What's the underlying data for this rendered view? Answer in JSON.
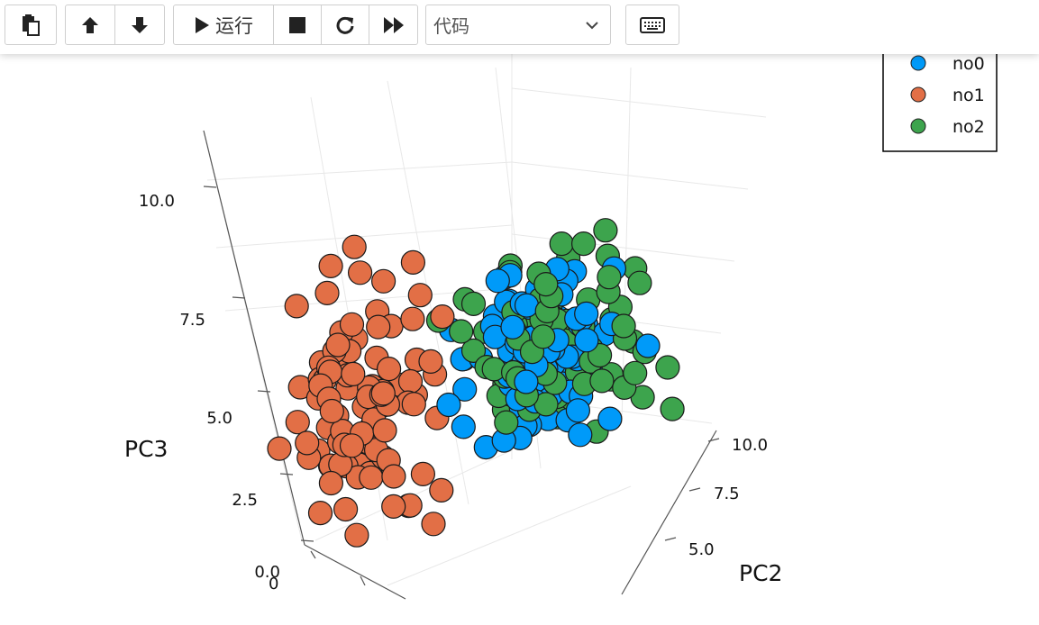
{
  "toolbar": {
    "run_label": "运行",
    "cell_type": "代码"
  },
  "chart_data": {
    "type": "scatter",
    "projection": "3d",
    "zlabel": "PC3",
    "ylabel": "PC2",
    "z_ticks": [
      "0.0",
      "2.5",
      "5.0",
      "7.5",
      "10.0"
    ],
    "y_ticks": [
      "5.0",
      "7.5",
      "10.0"
    ],
    "x_ticks": [
      "0"
    ],
    "legend_position": "top-right",
    "grid": true,
    "series": [
      {
        "name": "no0",
        "color": "#009af9",
        "count": 100
      },
      {
        "name": "no1",
        "color": "#e26f46",
        "count": 100
      },
      {
        "name": "no2",
        "color": "#3da44d",
        "count": 100
      }
    ]
  }
}
